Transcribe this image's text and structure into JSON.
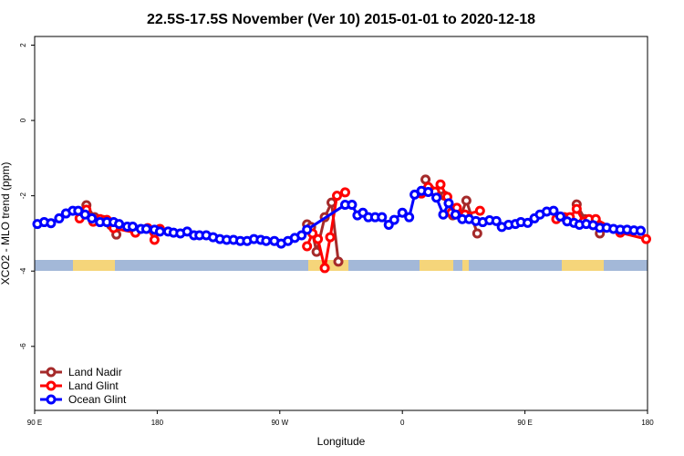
{
  "chart_data": {
    "type": "line",
    "title": "22.5S-17.5S November (Ver 10)   2015-01-01 to 2020-12-18",
    "x_label": "Longitude",
    "y_label": "XCO2 - MLO trend (ppm)",
    "xlim": [
      90,
      540
    ],
    "ylim": [
      -7.7,
      2.23
    ],
    "xticks": [
      {
        "value": 90,
        "label": "90 E"
      },
      180,
      {
        "value": 270,
        "label": "90 W"
      },
      {
        "value": 360,
        "label": "0"
      },
      {
        "value": 450,
        "label": "90 E"
      },
      {
        "value": 540,
        "label": "180"
      }
    ],
    "yticks": [
      2,
      0,
      -2,
      -4,
      -6
    ],
    "legend": "bottom-left",
    "series": [
      {
        "name": "Land Nadir",
        "color": "#a52a2a",
        "x": [
          128,
          134,
          140,
          146,
          150,
          200,
          290,
          293,
          297,
          303,
          308,
          313,
          345,
          377,
          380,
          386,
          391,
          397,
          403,
          407,
          415,
          450,
          488,
          494,
          500,
          505
        ],
        "values": [
          -2.25,
          -2.57,
          -2.64,
          -2.78,
          -3.03,
          null,
          -2.76,
          -2.83,
          -3.49,
          -2.57,
          -2.18,
          -3.75,
          null,
          -1.57,
          -1.82,
          -2.0,
          -2.0,
          -2.52,
          -2.52,
          -2.13,
          -3.0,
          null,
          -2.23,
          -2.62,
          -2.78,
          -3.0
        ]
      },
      {
        "name": "Land Glint",
        "color": "#ff0000",
        "x": [
          123,
          128,
          133,
          138,
          143,
          148,
          164,
          173,
          178,
          182,
          230,
          290,
          294,
          298,
          303,
          307,
          312,
          318,
          345,
          374,
          379,
          384,
          388,
          393,
          396,
          400,
          406,
          417,
          450,
          473,
          479,
          483,
          488,
          493,
          497,
          502,
          520,
          539
        ],
        "values": [
          -2.6,
          -2.37,
          -2.69,
          -2.62,
          -2.64,
          -2.86,
          -2.98,
          -2.86,
          -3.17,
          -2.88,
          null,
          -3.34,
          -3.0,
          -3.15,
          -3.92,
          -3.1,
          -2.0,
          -1.91,
          null,
          -1.94,
          -1.77,
          -1.89,
          -1.7,
          -2.03,
          -2.45,
          -2.32,
          -2.5,
          -2.4,
          null,
          -2.62,
          -2.57,
          -2.57,
          -2.35,
          -2.69,
          -2.62,
          -2.62,
          -2.98,
          -3.15
        ]
      },
      {
        "name": "Ocean Glint",
        "color": "#0000ff",
        "x": [
          92,
          97,
          102,
          108,
          113,
          118,
          122,
          127,
          132,
          138,
          143,
          148,
          152,
          158,
          162,
          168,
          172,
          178,
          182,
          188,
          192,
          197,
          202,
          207,
          211,
          216,
          221,
          226,
          231,
          236,
          241,
          246,
          251,
          256,
          260,
          266,
          271,
          276,
          281,
          286,
          290,
          318,
          323,
          327,
          331,
          335,
          340,
          345,
          350,
          354,
          360,
          365,
          369,
          374,
          379,
          385,
          390,
          394,
          399,
          404,
          409,
          414,
          419,
          424,
          429,
          433,
          438,
          443,
          447,
          452,
          457,
          461,
          466,
          471,
          476,
          481,
          486,
          490,
          495,
          500,
          505,
          510,
          515,
          520,
          525,
          530,
          535
        ],
        "values": [
          -2.75,
          -2.7,
          -2.73,
          -2.6,
          -2.47,
          -2.4,
          -2.4,
          -2.5,
          -2.6,
          -2.7,
          -2.7,
          -2.7,
          -2.75,
          -2.82,
          -2.82,
          -2.88,
          -2.88,
          -2.9,
          -2.95,
          -2.95,
          -2.98,
          -3.0,
          -2.95,
          -3.05,
          -3.05,
          -3.05,
          -3.1,
          -3.15,
          -3.17,
          -3.17,
          -3.2,
          -3.2,
          -3.15,
          -3.17,
          -3.2,
          -3.2,
          -3.27,
          -3.2,
          -3.12,
          -3.05,
          -2.9,
          -2.24,
          -2.24,
          -2.52,
          -2.45,
          -2.57,
          -2.57,
          -2.57,
          -2.77,
          -2.64,
          -2.45,
          -2.57,
          -1.97,
          -1.87,
          -1.9,
          -2.05,
          -2.5,
          -2.2,
          -2.5,
          -2.62,
          -2.62,
          -2.67,
          -2.7,
          -2.65,
          -2.67,
          -2.83,
          -2.77,
          -2.75,
          -2.7,
          -2.72,
          -2.6,
          -2.5,
          -2.42,
          -2.4,
          -2.55,
          -2.68,
          -2.72,
          -2.77,
          -2.75,
          -2.78,
          -2.85,
          -2.85,
          -2.88,
          -2.9,
          -2.9,
          -2.92,
          -2.93
        ]
      }
    ]
  }
}
